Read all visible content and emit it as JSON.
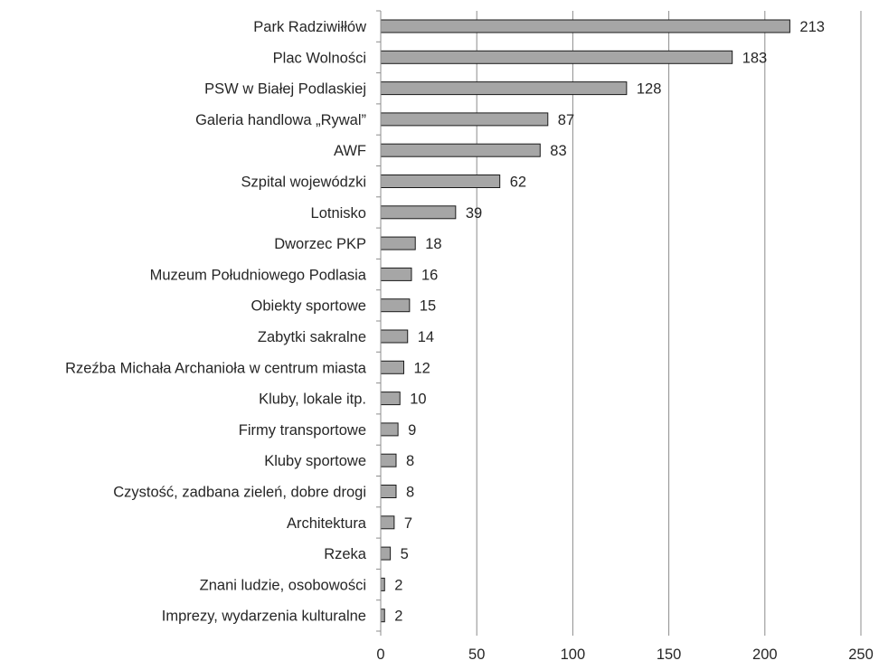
{
  "chart_data": {
    "type": "bar",
    "orientation": "horizontal",
    "categories": [
      "Park Radziwiłłów",
      "Plac Wolności",
      "PSW w Białej Podlaskiej",
      "Galeria handlowa „Rywal”",
      "AWF",
      "Szpital wojewódzki",
      "Lotnisko",
      "Dworzec PKP",
      "Muzeum Południowego Podlasia",
      "Obiekty sportowe",
      "Zabytki sakralne",
      "Rzeźba Michała Archanioła w centrum miasta",
      "Kluby, lokale itp.",
      "Firmy transportowe",
      "Kluby sportowe",
      "Czystość, zadbana zieleń, dobre drogi",
      "Architektura",
      "Rzeka",
      "Znani ludzie, osobowości",
      "Imprezy, wydarzenia kulturalne"
    ],
    "values": [
      213,
      183,
      128,
      87,
      83,
      62,
      39,
      18,
      16,
      15,
      14,
      12,
      10,
      9,
      8,
      8,
      7,
      5,
      2,
      2
    ],
    "xlim": [
      0,
      250
    ],
    "x_ticks": [
      0,
      50,
      100,
      150,
      200,
      250
    ],
    "grid": true,
    "legend": false,
    "bar_color": "#a6a6a6",
    "bar_edge_color": "#1a1a1a",
    "grid_color": "#8c8c8c",
    "text_color": "#262626"
  }
}
